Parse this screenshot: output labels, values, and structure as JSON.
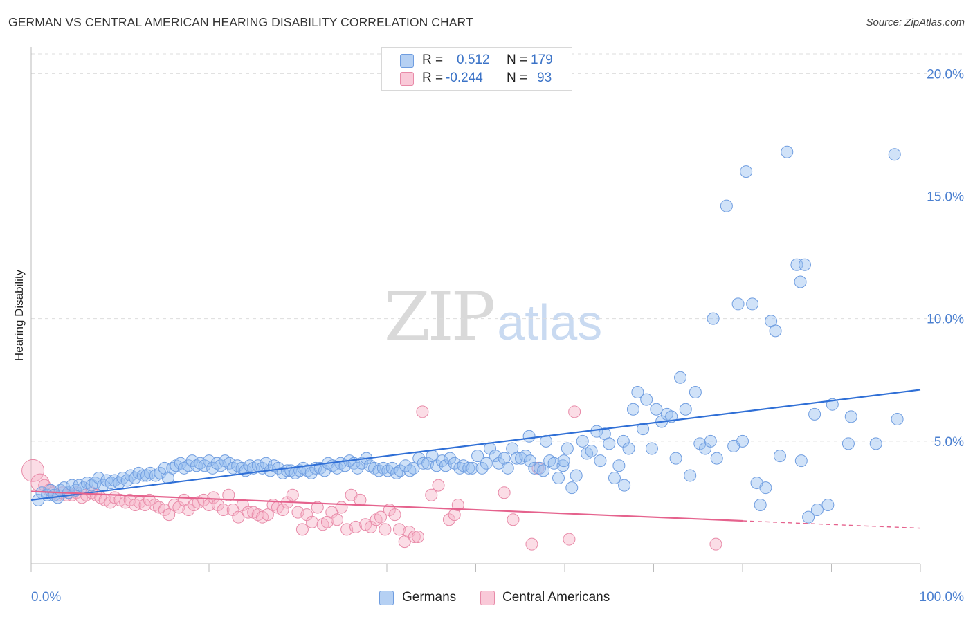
{
  "header": {
    "title": "GERMAN VS CENTRAL AMERICAN HEARING DISABILITY CORRELATION CHART",
    "source": "Source: ZipAtlas.com"
  },
  "watermark": {
    "zip": "ZIP",
    "atlas": "atlas"
  },
  "legend": {
    "series": [
      {
        "r_label": "R =",
        "r_value": "0.512",
        "n_label": "N =",
        "n_value": "179",
        "color": "#a9c8f0",
        "border": "#6f9de0"
      },
      {
        "r_label": "R =",
        "r_value": "-0.244",
        "n_label": "N =",
        "n_value": "93",
        "color": "#f7bfd0",
        "border": "#e88aa8"
      }
    ]
  },
  "bottom_legend": {
    "germans": "Germans",
    "central_americans": "Central Americans"
  },
  "colors": {
    "blue_fill": "rgba(150,190,240,0.45)",
    "blue_stroke": "#6f9de0",
    "blue_line": "#2f6fd6",
    "pink_fill": "rgba(246,180,200,0.45)",
    "pink_stroke": "#e88aa8",
    "pink_line": "#e5628d",
    "grid": "#dddddd",
    "tick_text": "#4a7fd0"
  },
  "chart_data": {
    "type": "scatter",
    "title": "GERMAN VS CENTRAL AMERICAN HEARING DISABILITY CORRELATION CHART",
    "xlabel": "",
    "ylabel": "Hearing Disability",
    "xlim": [
      0,
      100
    ],
    "ylim": [
      0,
      20.8
    ],
    "x_tick_labels": [
      "0.0%",
      "100.0%"
    ],
    "y_ticks": [
      5,
      10,
      15,
      20
    ],
    "y_tick_labels": [
      "5.0%",
      "10.0%",
      "15.0%",
      "20.0%"
    ],
    "grid": true,
    "legend_position": "top-center",
    "series": [
      {
        "name": "Germans",
        "trendline": {
          "x": [
            0,
            100
          ],
          "y": [
            2.6,
            7.1
          ]
        },
        "points": [
          [
            0.8,
            2.6
          ],
          [
            1.2,
            2.9
          ],
          [
            1.8,
            2.8
          ],
          [
            2.2,
            3.0
          ],
          [
            2.6,
            2.8
          ],
          [
            3.0,
            2.7
          ],
          [
            3.3,
            3.0
          ],
          [
            3.7,
            3.1
          ],
          [
            4.2,
            2.9
          ],
          [
            4.6,
            3.2
          ],
          [
            5.0,
            3.0
          ],
          [
            5.4,
            3.2
          ],
          [
            5.9,
            3.1
          ],
          [
            6.3,
            3.3
          ],
          [
            6.8,
            3.2
          ],
          [
            7.2,
            3.3
          ],
          [
            7.6,
            3.5
          ],
          [
            8.1,
            3.2
          ],
          [
            8.5,
            3.4
          ],
          [
            9.0,
            3.3
          ],
          [
            9.4,
            3.4
          ],
          [
            9.9,
            3.3
          ],
          [
            10.3,
            3.5
          ],
          [
            10.8,
            3.4
          ],
          [
            11.2,
            3.6
          ],
          [
            11.7,
            3.5
          ],
          [
            12.1,
            3.7
          ],
          [
            12.6,
            3.6
          ],
          [
            13.0,
            3.6
          ],
          [
            13.4,
            3.7
          ],
          [
            14.0,
            3.6
          ],
          [
            14.5,
            3.7
          ],
          [
            15.0,
            3.9
          ],
          [
            15.4,
            3.5
          ],
          [
            15.9,
            3.9
          ],
          [
            16.3,
            4.0
          ],
          [
            16.8,
            4.1
          ],
          [
            17.2,
            3.9
          ],
          [
            17.7,
            4.0
          ],
          [
            18.1,
            4.2
          ],
          [
            18.6,
            4.0
          ],
          [
            19.0,
            4.1
          ],
          [
            19.5,
            4.0
          ],
          [
            20.0,
            4.2
          ],
          [
            20.4,
            3.9
          ],
          [
            20.9,
            4.1
          ],
          [
            21.3,
            4.0
          ],
          [
            21.8,
            4.2
          ],
          [
            22.3,
            4.1
          ],
          [
            22.7,
            3.9
          ],
          [
            23.2,
            4.0
          ],
          [
            23.7,
            3.9
          ],
          [
            24.1,
            3.8
          ],
          [
            24.6,
            4.0
          ],
          [
            25.0,
            3.9
          ],
          [
            25.5,
            4.0
          ],
          [
            26.0,
            3.9
          ],
          [
            26.4,
            4.1
          ],
          [
            26.9,
            3.8
          ],
          [
            27.3,
            4.0
          ],
          [
            27.8,
            3.9
          ],
          [
            28.3,
            3.7
          ],
          [
            28.8,
            3.8
          ],
          [
            29.2,
            3.8
          ],
          [
            29.7,
            3.7
          ],
          [
            30.2,
            3.8
          ],
          [
            30.6,
            3.9
          ],
          [
            31.1,
            3.8
          ],
          [
            31.5,
            3.7
          ],
          [
            32.0,
            3.9
          ],
          [
            32.5,
            3.9
          ],
          [
            33.0,
            3.8
          ],
          [
            33.4,
            4.1
          ],
          [
            33.9,
            4.0
          ],
          [
            34.4,
            3.9
          ],
          [
            34.8,
            4.1
          ],
          [
            35.3,
            4.0
          ],
          [
            35.8,
            4.2
          ],
          [
            36.3,
            4.1
          ],
          [
            36.7,
            3.9
          ],
          [
            37.2,
            4.1
          ],
          [
            37.7,
            4.3
          ],
          [
            38.1,
            4.0
          ],
          [
            38.6,
            3.9
          ],
          [
            39.1,
            3.8
          ],
          [
            39.6,
            3.9
          ],
          [
            40.1,
            3.8
          ],
          [
            40.6,
            3.9
          ],
          [
            41.1,
            3.7
          ],
          [
            41.5,
            3.8
          ],
          [
            42.1,
            4.0
          ],
          [
            42.6,
            3.8
          ],
          [
            43.0,
            3.9
          ],
          [
            43.6,
            4.3
          ],
          [
            44.1,
            4.1
          ],
          [
            44.6,
            4.1
          ],
          [
            45.1,
            4.4
          ],
          [
            45.6,
            4.0
          ],
          [
            46.2,
            4.2
          ],
          [
            46.6,
            4.0
          ],
          [
            47.1,
            4.3
          ],
          [
            47.6,
            4.1
          ],
          [
            48.2,
            3.9
          ],
          [
            48.6,
            4.0
          ],
          [
            49.2,
            3.9
          ],
          [
            49.6,
            3.9
          ],
          [
            50.2,
            4.4
          ],
          [
            50.7,
            3.9
          ],
          [
            51.2,
            4.1
          ],
          [
            51.6,
            4.7
          ],
          [
            52.2,
            4.4
          ],
          [
            52.6,
            4.1
          ],
          [
            53.2,
            4.3
          ],
          [
            53.6,
            3.9
          ],
          [
            54.1,
            4.7
          ],
          [
            54.6,
            4.3
          ],
          [
            55.1,
            4.3
          ],
          [
            55.6,
            4.4
          ],
          [
            56.1,
            4.2
          ],
          [
            56.6,
            3.9
          ],
          [
            57.2,
            3.9
          ],
          [
            57.6,
            3.8
          ],
          [
            57.9,
            5.0
          ],
          [
            58.3,
            4.2
          ],
          [
            58.8,
            4.1
          ],
          [
            59.3,
            3.5
          ],
          [
            59.8,
            4.0
          ],
          [
            60.3,
            4.7
          ],
          [
            60.8,
            3.1
          ],
          [
            61.3,
            3.6
          ],
          [
            62.0,
            5.0
          ],
          [
            62.5,
            4.5
          ],
          [
            63.0,
            4.6
          ],
          [
            63.6,
            5.4
          ],
          [
            64.0,
            4.2
          ],
          [
            64.5,
            5.3
          ],
          [
            65.0,
            4.9
          ],
          [
            65.6,
            3.5
          ],
          [
            66.1,
            4.0
          ],
          [
            66.6,
            5.0
          ],
          [
            67.2,
            4.7
          ],
          [
            67.7,
            6.3
          ],
          [
            68.2,
            7.0
          ],
          [
            68.8,
            5.5
          ],
          [
            69.2,
            6.7
          ],
          [
            69.8,
            4.7
          ],
          [
            70.3,
            6.3
          ],
          [
            70.9,
            5.8
          ],
          [
            71.5,
            6.1
          ],
          [
            72.0,
            6.0
          ],
          [
            72.5,
            4.3
          ],
          [
            73.0,
            7.6
          ],
          [
            73.6,
            6.3
          ],
          [
            74.1,
            3.6
          ],
          [
            74.7,
            7.0
          ],
          [
            75.2,
            4.9
          ],
          [
            75.8,
            4.7
          ],
          [
            76.4,
            5.0
          ],
          [
            76.7,
            10.0
          ],
          [
            77.1,
            4.3
          ],
          [
            78.2,
            14.6
          ],
          [
            79.5,
            10.6
          ],
          [
            80.0,
            5.0
          ],
          [
            80.4,
            16.0
          ],
          [
            81.1,
            10.6
          ],
          [
            81.6,
            3.3
          ],
          [
            82.0,
            2.4
          ],
          [
            82.6,
            3.1
          ],
          [
            83.2,
            9.9
          ],
          [
            83.7,
            9.5
          ],
          [
            85.0,
            16.8
          ],
          [
            86.1,
            12.2
          ],
          [
            86.5,
            11.5
          ],
          [
            87.0,
            12.2
          ],
          [
            87.4,
            1.9
          ],
          [
            88.4,
            2.2
          ],
          [
            89.6,
            2.4
          ],
          [
            91.9,
            4.9
          ],
          [
            92.2,
            6.0
          ],
          [
            97.1,
            16.7
          ],
          [
            97.4,
            5.9
          ],
          [
            95.0,
            4.9
          ],
          [
            90.1,
            6.5
          ],
          [
            88.1,
            6.1
          ],
          [
            86.6,
            4.2
          ],
          [
            84.2,
            4.4
          ],
          [
            79.0,
            4.8
          ],
          [
            66.7,
            3.2
          ],
          [
            59.9,
            4.2
          ],
          [
            56.0,
            5.2
          ]
        ]
      },
      {
        "name": "Central Americans",
        "trendline": {
          "x": [
            0,
            80
          ],
          "y": [
            2.95,
            1.75
          ]
        },
        "trendline_dashed": {
          "x": [
            80,
            100
          ],
          "y": [
            1.75,
            1.45
          ]
        },
        "points": [
          [
            0.2,
            3.8
          ],
          [
            1.0,
            3.3
          ],
          [
            1.5,
            3.2
          ],
          [
            2.0,
            3.0
          ],
          [
            2.5,
            2.9
          ],
          [
            3.0,
            2.8
          ],
          [
            3.5,
            2.9
          ],
          [
            4.0,
            2.8
          ],
          [
            4.6,
            2.8
          ],
          [
            5.1,
            2.9
          ],
          [
            5.7,
            2.7
          ],
          [
            6.2,
            2.8
          ],
          [
            6.8,
            2.9
          ],
          [
            7.3,
            2.8
          ],
          [
            7.8,
            2.7
          ],
          [
            8.3,
            2.6
          ],
          [
            8.9,
            2.5
          ],
          [
            9.4,
            2.7
          ],
          [
            10.0,
            2.6
          ],
          [
            10.6,
            2.5
          ],
          [
            11.1,
            2.6
          ],
          [
            11.7,
            2.4
          ],
          [
            12.2,
            2.5
          ],
          [
            12.8,
            2.4
          ],
          [
            13.3,
            2.6
          ],
          [
            13.9,
            2.4
          ],
          [
            14.4,
            2.3
          ],
          [
            15.0,
            2.2
          ],
          [
            15.5,
            2.0
          ],
          [
            16.1,
            2.4
          ],
          [
            16.6,
            2.3
          ],
          [
            17.2,
            2.6
          ],
          [
            17.7,
            2.2
          ],
          [
            18.3,
            2.4
          ],
          [
            18.8,
            2.5
          ],
          [
            19.4,
            2.6
          ],
          [
            20.0,
            2.4
          ],
          [
            20.5,
            2.7
          ],
          [
            21.0,
            2.4
          ],
          [
            21.6,
            2.2
          ],
          [
            22.2,
            2.8
          ],
          [
            22.7,
            2.2
          ],
          [
            23.3,
            1.9
          ],
          [
            23.8,
            2.4
          ],
          [
            24.4,
            2.1
          ],
          [
            25.0,
            2.1
          ],
          [
            25.5,
            2.0
          ],
          [
            26.0,
            1.9
          ],
          [
            26.6,
            2.0
          ],
          [
            27.2,
            2.4
          ],
          [
            27.7,
            2.3
          ],
          [
            28.3,
            2.2
          ],
          [
            28.8,
            2.5
          ],
          [
            29.4,
            2.8
          ],
          [
            30.0,
            2.1
          ],
          [
            30.5,
            1.4
          ],
          [
            31.0,
            2.0
          ],
          [
            31.6,
            1.7
          ],
          [
            32.2,
            2.3
          ],
          [
            32.8,
            1.6
          ],
          [
            33.3,
            1.7
          ],
          [
            33.8,
            2.1
          ],
          [
            34.4,
            1.8
          ],
          [
            34.9,
            2.3
          ],
          [
            35.5,
            1.4
          ],
          [
            36.0,
            2.8
          ],
          [
            36.5,
            1.5
          ],
          [
            37.0,
            2.6
          ],
          [
            37.6,
            1.6
          ],
          [
            38.2,
            1.5
          ],
          [
            38.8,
            1.8
          ],
          [
            39.3,
            1.9
          ],
          [
            39.8,
            1.4
          ],
          [
            40.3,
            2.2
          ],
          [
            40.9,
            2.0
          ],
          [
            41.4,
            1.4
          ],
          [
            42.0,
            0.9
          ],
          [
            42.5,
            1.3
          ],
          [
            43.1,
            1.1
          ],
          [
            43.5,
            1.1
          ],
          [
            44.0,
            6.2
          ],
          [
            45.0,
            2.8
          ],
          [
            45.8,
            3.2
          ],
          [
            47.0,
            1.8
          ],
          [
            47.6,
            2.0
          ],
          [
            48.0,
            2.4
          ],
          [
            53.2,
            2.9
          ],
          [
            54.2,
            1.8
          ],
          [
            57.0,
            3.9
          ],
          [
            61.1,
            6.2
          ],
          [
            56.3,
            0.8
          ],
          [
            60.5,
            1.0
          ],
          [
            77.0,
            0.8
          ]
        ]
      }
    ]
  }
}
